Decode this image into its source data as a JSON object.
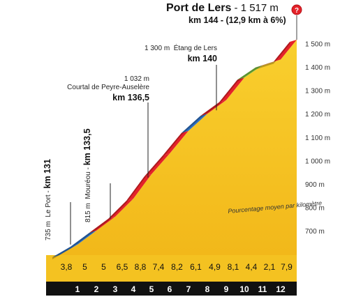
{
  "header": {
    "name": "Port de Lers",
    "altitude": "- 1 517 m",
    "summary": "km 144 - (12,9 km à 6%)"
  },
  "marker_icon": "question-mark-pin-icon",
  "note": "Pourcentage moyen par kilomètre",
  "annotations": [
    {
      "id": "le-port",
      "alt": "735 m",
      "name": "Le Port",
      "km": "km 131"
    },
    {
      "id": "moureou",
      "alt": "815 m",
      "name": "Mouréou",
      "km": "km 133,5"
    },
    {
      "id": "courtal",
      "alt": "1 032 m",
      "name": "Courtal de Peyre-Auselère",
      "km": "km 136,5"
    },
    {
      "id": "etang",
      "alt": "1 300 m",
      "name": "Étang de Lers",
      "km": "km 140"
    }
  ],
  "chart_data": {
    "type": "area",
    "y_unit": "m",
    "y_ticks": [
      "700 m",
      "800 m",
      "900 m",
      "1 000 m",
      "1 100 m",
      "1 200 m",
      "1 300 m",
      "1 400 m",
      "1 500 m"
    ],
    "y_tick_values": [
      700,
      800,
      900,
      1000,
      1100,
      1200,
      1300,
      1400,
      1500
    ],
    "ylim": [
      595,
      1517
    ],
    "x_ticks": [
      "1",
      "2",
      "3",
      "4",
      "5",
      "6",
      "7",
      "8",
      "9",
      "10",
      "11",
      "12"
    ],
    "km_markers": [
      1,
      2,
      3,
      4,
      5,
      6,
      7,
      8,
      9,
      10,
      11,
      12
    ],
    "km_gradients": [
      "3,8",
      "5",
      "5",
      "6,5",
      "8,8",
      "7,4",
      "8,2",
      "6,1",
      "4,9",
      "8,1",
      "4,4",
      "2,1",
      "7,9"
    ],
    "segment_colors": [
      "blue",
      "blue",
      "red",
      "red",
      "red",
      "red",
      "red",
      "blue",
      "red",
      "red",
      "green",
      "red",
      "red"
    ],
    "colors": {
      "blue": "#2e6fc0",
      "red": "#e42229",
      "green": "#7cc242",
      "fill": "#f7c21a",
      "base": "#111111"
    }
  }
}
